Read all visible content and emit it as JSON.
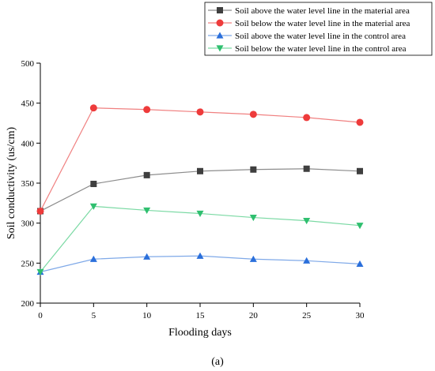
{
  "chart_data": {
    "type": "line",
    "xlabel": "Flooding days",
    "ylabel": "Soil conductivity (us/cm)",
    "xlim": [
      0,
      30
    ],
    "ylim": [
      200,
      500
    ],
    "xticks": [
      0,
      5,
      10,
      15,
      20,
      25,
      30
    ],
    "yticks": [
      200,
      250,
      300,
      350,
      400,
      450,
      500
    ],
    "legend_position": "top-right",
    "grid": false,
    "x": [
      0,
      5,
      10,
      15,
      20,
      25,
      30
    ],
    "series": [
      {
        "name": "Soil above the water level line in the material area",
        "color": "#3f3f3f",
        "line_color": "#8c8c8c",
        "marker": "square",
        "values": [
          315,
          349,
          360,
          365,
          367,
          368,
          365
        ]
      },
      {
        "name": "Soil below the water level line in the material area",
        "color": "#ee3b3b",
        "line_color": "#f08080",
        "marker": "circle",
        "values": [
          315,
          444,
          442,
          439,
          436,
          432,
          426
        ]
      },
      {
        "name": "Soil above the water level line in the control area",
        "color": "#2a6fdb",
        "line_color": "#7fa9e8",
        "marker": "triangle-up",
        "values": [
          239,
          255,
          258,
          259,
          255,
          253,
          249
        ]
      },
      {
        "name": "Soil below the water level line in the control area",
        "color": "#2fbf6f",
        "line_color": "#7ad9a3",
        "marker": "triangle-down",
        "values": [
          239,
          321,
          316,
          312,
          307,
          303,
          297
        ]
      }
    ]
  },
  "caption": "(a)"
}
